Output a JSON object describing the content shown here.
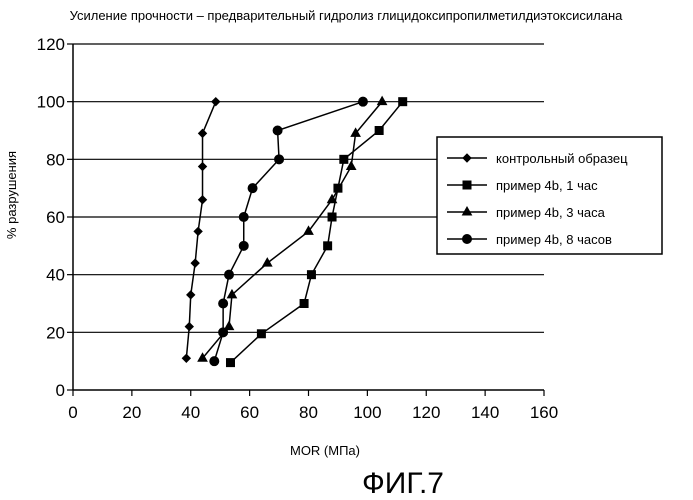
{
  "figure_label": "ФИГ.7",
  "chart_data": {
    "type": "line",
    "title": "Усиление прочности – предварительный гидролиз глицидоксипропилметилдиэтоксисилана",
    "xlabel": "MOR (МПа)",
    "ylabel": "% разрушения",
    "xlim": [
      0,
      160
    ],
    "ylim": [
      0,
      120
    ],
    "xticks": [
      "0",
      "20",
      "40",
      "60",
      "80",
      "100",
      "120",
      "140",
      "160"
    ],
    "yticks": [
      "0",
      "20",
      "40",
      "60",
      "80",
      "100",
      "120"
    ],
    "grid": "horizontal",
    "legend_position": "right",
    "series": [
      {
        "name": "контрольный образец",
        "marker": "diamond",
        "points": [
          [
            38.5,
            11
          ],
          [
            39.5,
            22
          ],
          [
            40,
            33
          ],
          [
            41.5,
            44
          ],
          [
            42.5,
            55
          ],
          [
            44,
            66
          ],
          [
            44,
            77.5
          ],
          [
            44,
            89
          ],
          [
            48.5,
            100
          ]
        ]
      },
      {
        "name": "пример 4b, 1 час",
        "marker": "square",
        "points": [
          [
            53.5,
            9.5
          ],
          [
            64,
            19.5
          ],
          [
            78.5,
            30
          ],
          [
            81,
            40
          ],
          [
            86.5,
            50
          ],
          [
            88,
            60
          ],
          [
            90,
            70
          ],
          [
            92,
            80
          ],
          [
            104,
            90
          ],
          [
            112,
            100
          ]
        ]
      },
      {
        "name": "пример 4b, 3 часа",
        "marker": "triangle",
        "points": [
          [
            44,
            11
          ],
          [
            53,
            22
          ],
          [
            54,
            33
          ],
          [
            66,
            44
          ],
          [
            80,
            55
          ],
          [
            88,
            66
          ],
          [
            94.5,
            77.5
          ],
          [
            96,
            89
          ],
          [
            105,
            100
          ]
        ]
      },
      {
        "name": "пример 4b, 8 часов",
        "marker": "circle",
        "points": [
          [
            48,
            10
          ],
          [
            51,
            20
          ],
          [
            51,
            30
          ],
          [
            53,
            40
          ],
          [
            58,
            50
          ],
          [
            58,
            60
          ],
          [
            61,
            70
          ],
          [
            70,
            80
          ],
          [
            69.5,
            90
          ],
          [
            98.5,
            100
          ]
        ]
      }
    ]
  }
}
